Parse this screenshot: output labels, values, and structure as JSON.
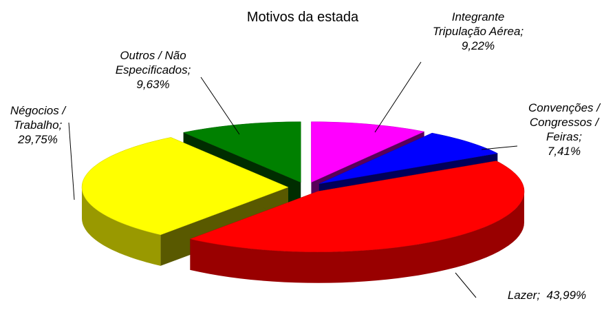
{
  "chart_data": {
    "type": "pie3d",
    "title": "Motivos da estada",
    "categories": [
      "Integrante Tripulação Aérea;",
      "Convenções / Congressos / Feiras;",
      "Lazer;",
      "Négocios / Trabalho;",
      "Outros / Não Especificados;"
    ],
    "values": [
      9.22,
      7.41,
      43.99,
      29.75,
      9.63
    ],
    "value_labels": [
      "9,22%",
      "7,41%",
      "43,99%",
      "29,75%",
      "9,63%"
    ],
    "colors": [
      "#ff00ff",
      "#0000ff",
      "#ff0000",
      "#ffff00",
      "#008000"
    ]
  }
}
